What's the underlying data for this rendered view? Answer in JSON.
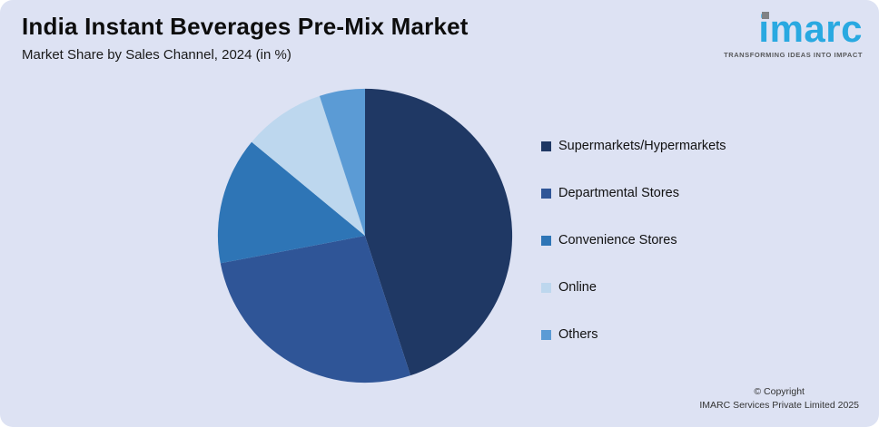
{
  "header": {
    "title": "India Instant Beverages Pre-Mix Market",
    "subtitle": "Market Share by Sales Channel, 2024 (in %)"
  },
  "logo": {
    "text": "imarc",
    "tagline": "TRANSFORMING IDEAS INTO IMPACT",
    "brand_color": "#29a9e1",
    "dot_color": "#808285"
  },
  "footer": {
    "copyright_line1": "© Copyright",
    "copyright_line2": "IMARC Services Private Limited 2025"
  },
  "chart_data": {
    "type": "pie",
    "title": "India Instant Beverages Pre-Mix Market",
    "subtitle": "Market Share by Sales Channel, 2024 (in %)",
    "labels": [
      "Supermarkets/Hypermarkets",
      "Departmental Stores",
      "Convenience Stores",
      "Online",
      "Others"
    ],
    "values": [
      45,
      27,
      14,
      9,
      5
    ],
    "colors": [
      "#1f3864",
      "#2f5597",
      "#2e75b6",
      "#bdd7ee",
      "#5b9bd5"
    ],
    "legend_position": "right",
    "start_angle_deg": 0,
    "background_color": "#dde2f3"
  }
}
